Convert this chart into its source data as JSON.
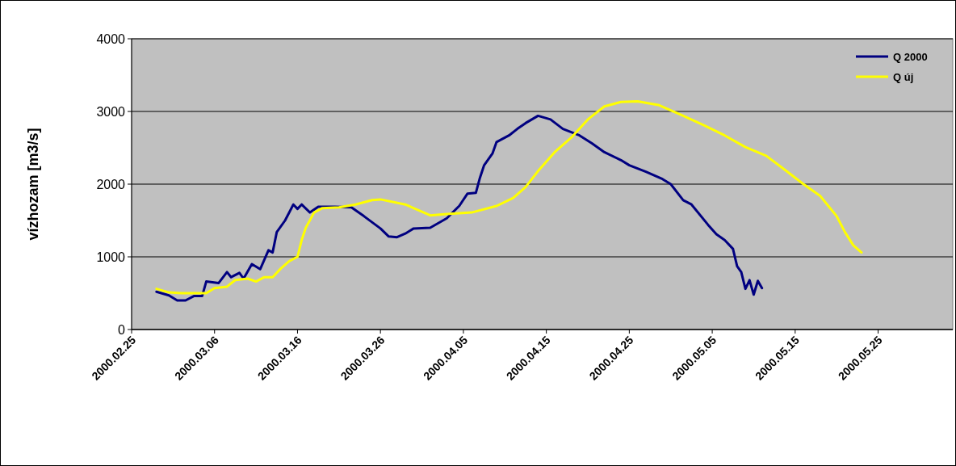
{
  "chart_data": {
    "type": "line",
    "ylabel": "vízhozam [m3/s]",
    "ylim": [
      0,
      4000
    ],
    "yticks": [
      0,
      1000,
      2000,
      3000,
      4000
    ],
    "xlim": [
      "2000-02-25",
      "2000-06-03"
    ],
    "xticks": [
      {
        "value": "2000-02-25",
        "label": "2000.02.25"
      },
      {
        "value": "2000-03-06",
        "label": "2000.03.06"
      },
      {
        "value": "2000-03-16",
        "label": "2000.03.16"
      },
      {
        "value": "2000-03-26",
        "label": "2000.03.26"
      },
      {
        "value": "2000-04-05",
        "label": "2000.04.05"
      },
      {
        "value": "2000-04-15",
        "label": "2000.04.15"
      },
      {
        "value": "2000-04-25",
        "label": "2000.04.25"
      },
      {
        "value": "2000-05-05",
        "label": "2000.05.05"
      },
      {
        "value": "2000-05-15",
        "label": "2000.05.15"
      },
      {
        "value": "2000-05-25",
        "label": "2000.05.25"
      }
    ],
    "grid": "y",
    "legend": "top right",
    "marker": "none",
    "line_style": "solid",
    "series": [
      {
        "name": "Q 2000",
        "color": "#000080",
        "x": [
          "2000-02-28",
          "2000-02-29T12:00",
          "2000-03-01T12:00",
          "2000-03-02T12:00",
          "2000-03-03T12:00",
          "2000-03-04T12:00",
          "2000-03-05",
          "2000-03-06T12:00",
          "2000-03-07T12:00",
          "2000-03-08",
          "2000-03-09",
          "2000-03-09T12:00",
          "2000-03-10T12:00",
          "2000-03-11T12:00",
          "2000-03-12T12:00",
          "2000-03-13",
          "2000-03-13T12:00",
          "2000-03-14T12:00",
          "2000-03-15T12:00",
          "2000-03-16",
          "2000-03-16T12:00",
          "2000-03-17T12:00",
          "2000-03-18T12:00",
          "2000-03-20T12:00",
          "2000-03-22T12:00",
          "2000-03-24",
          "2000-03-26",
          "2000-03-27",
          "2000-03-28",
          "2000-03-29",
          "2000-03-30",
          "2000-04-01",
          "2000-04-03",
          "2000-04-04T12:00",
          "2000-04-05T12:00",
          "2000-04-06T12:00",
          "2000-04-07",
          "2000-04-07T12:00",
          "2000-04-08T12:00",
          "2000-04-09",
          "2000-04-10T12:00",
          "2000-04-11T12:00",
          "2000-04-12T12:00",
          "2000-04-14",
          "2000-04-15T12:00",
          "2000-04-17",
          "2000-04-19",
          "2000-04-20T12:00",
          "2000-04-22",
          "2000-04-24",
          "2000-04-25",
          "2000-04-27",
          "2000-04-29",
          "2000-04-30",
          "2000-05-01T12:00",
          "2000-05-02T12:00",
          "2000-05-04T12:00",
          "2000-05-05T12:00",
          "2000-05-06T12:00",
          "2000-05-07T12:00",
          "2000-05-08",
          "2000-05-08T12:00",
          "2000-05-09",
          "2000-05-09T12:00",
          "2000-05-10",
          "2000-05-10T12:00",
          "2000-05-11"
        ],
        "values": [
          520,
          470,
          400,
          400,
          460,
          460,
          660,
          640,
          790,
          720,
          780,
          700,
          900,
          830,
          1090,
          1060,
          1340,
          1500,
          1720,
          1660,
          1720,
          1610,
          1690,
          1690,
          1680,
          1560,
          1390,
          1280,
          1270,
          1320,
          1390,
          1400,
          1530,
          1700,
          1870,
          1880,
          2090,
          2260,
          2420,
          2580,
          2670,
          2760,
          2840,
          2940,
          2890,
          2760,
          2670,
          2560,
          2440,
          2330,
          2260,
          2170,
          2070,
          2000,
          1780,
          1720,
          1440,
          1310,
          1230,
          1110,
          870,
          790,
          560,
          680,
          480,
          670,
          570
        ]
      },
      {
        "name": "Q új",
        "color": "#ffff00",
        "x": [
          "2000-02-28",
          "2000-02-29T12:00",
          "2000-03-02",
          "2000-03-05",
          "2000-03-06",
          "2000-03-07T12:00",
          "2000-03-08T12:00",
          "2000-03-10",
          "2000-03-11",
          "2000-03-12",
          "2000-03-13",
          "2000-03-14",
          "2000-03-15",
          "2000-03-16",
          "2000-03-16T12:00",
          "2000-03-17",
          "2000-03-18",
          "2000-03-19",
          "2000-03-21",
          "2000-03-23",
          "2000-03-25",
          "2000-03-26",
          "2000-03-29",
          "2000-03-31",
          "2000-04-01",
          "2000-04-03",
          "2000-04-06",
          "2000-04-09",
          "2000-04-11",
          "2000-04-12T12:00",
          "2000-04-14",
          "2000-04-16",
          "2000-04-18",
          "2000-04-20",
          "2000-04-22",
          "2000-04-24",
          "2000-04-26",
          "2000-04-28T12:00",
          "2000-05-01T12:00",
          "2000-05-04",
          "2000-05-06T12:00",
          "2000-05-09",
          "2000-05-11T12:00",
          "2000-05-13T12:00",
          "2000-05-16",
          "2000-05-18",
          "2000-05-20",
          "2000-05-21",
          "2000-05-22",
          "2000-05-23"
        ],
        "values": [
          560,
          510,
          500,
          500,
          570,
          590,
          680,
          700,
          660,
          720,
          720,
          840,
          940,
          1000,
          1230,
          1400,
          1610,
          1670,
          1680,
          1720,
          1780,
          1790,
          1720,
          1620,
          1570,
          1590,
          1610,
          1700,
          1810,
          1960,
          2180,
          2440,
          2640,
          2890,
          3070,
          3130,
          3140,
          3090,
          2940,
          2810,
          2670,
          2510,
          2390,
          2220,
          2000,
          1840,
          1560,
          1340,
          1160,
          1060
        ]
      }
    ]
  }
}
